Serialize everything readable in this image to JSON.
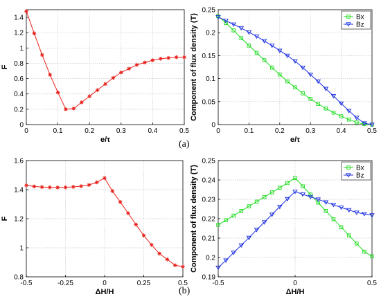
{
  "figure": {
    "panel_labels": [
      "(a)",
      "(b)"
    ],
    "colors": {
      "F": "#e8201a",
      "Bx": "#1bdc1b",
      "Bz": "#1a2ee0"
    }
  },
  "chart_data": [
    {
      "id": "top-left",
      "type": "line",
      "xlabel": "e/τ",
      "ylabel": "F",
      "xlim": [
        0,
        0.5
      ],
      "ylim": [
        0,
        1.5
      ],
      "xticks": [
        0,
        0.1,
        0.2,
        0.3,
        0.4,
        0.5
      ],
      "xticklabels": [
        "0",
        "0.1",
        "0.2",
        "0.3",
        "0.4",
        "0.5"
      ],
      "yticks": [
        0,
        0.2,
        0.4,
        0.6,
        0.8,
        1.0,
        1.2,
        1.4
      ],
      "yticklabels": [
        "0",
        "0.2",
        "0.4",
        "0.6",
        "0.8",
        "1",
        "1.2",
        "1.4"
      ],
      "grid": true,
      "series": [
        {
          "color": "#e8201a",
          "marker": "star",
          "x": [
            0,
            0.025,
            0.05,
            0.075,
            0.1,
            0.125,
            0.15,
            0.175,
            0.2,
            0.225,
            0.25,
            0.275,
            0.3,
            0.325,
            0.35,
            0.375,
            0.4,
            0.425,
            0.45,
            0.475,
            0.5
          ],
          "y": [
            1.48,
            1.19,
            0.91,
            0.65,
            0.42,
            0.2,
            0.21,
            0.29,
            0.37,
            0.45,
            0.53,
            0.61,
            0.68,
            0.73,
            0.78,
            0.81,
            0.84,
            0.86,
            0.87,
            0.88,
            0.88
          ]
        }
      ]
    },
    {
      "id": "top-right",
      "type": "line",
      "xlabel": "e/τ",
      "ylabel": "Component of flux density (T)",
      "xlim": [
        0,
        0.5
      ],
      "ylim": [
        0,
        0.25
      ],
      "xticks": [
        0,
        0.1,
        0.2,
        0.3,
        0.4,
        0.5
      ],
      "xticklabels": [
        "0",
        "0.1",
        "0.2",
        "0.3",
        "0.4",
        "0.5"
      ],
      "yticks": [
        0,
        0.05,
        0.1,
        0.15,
        0.2,
        0.25
      ],
      "yticklabels": [
        "0",
        "0.05",
        "0.1",
        "0.15",
        "0.2",
        "0.25"
      ],
      "grid": true,
      "legend": "top-right",
      "series": [
        {
          "name": "Bx",
          "color": "#1bdc1b",
          "marker": "square",
          "x": [
            0,
            0.025,
            0.05,
            0.075,
            0.1,
            0.125,
            0.15,
            0.175,
            0.2,
            0.225,
            0.25,
            0.275,
            0.3,
            0.325,
            0.35,
            0.375,
            0.4,
            0.425,
            0.45,
            0.475,
            0.5
          ],
          "y": [
            0.236,
            0.221,
            0.205,
            0.188,
            0.172,
            0.156,
            0.14,
            0.124,
            0.109,
            0.094,
            0.081,
            0.068,
            0.056,
            0.045,
            0.035,
            0.026,
            0.018,
            0.011,
            0.005,
            0.001,
            0.0
          ]
        },
        {
          "name": "Bz",
          "color": "#1a2ee0",
          "marker": "triangle-down",
          "x": [
            0,
            0.025,
            0.05,
            0.075,
            0.1,
            0.125,
            0.15,
            0.175,
            0.2,
            0.225,
            0.25,
            0.275,
            0.3,
            0.325,
            0.35,
            0.375,
            0.4,
            0.425,
            0.45,
            0.475,
            0.5
          ],
          "y": [
            0.234,
            0.226,
            0.218,
            0.21,
            0.201,
            0.192,
            0.182,
            0.172,
            0.161,
            0.15,
            0.138,
            0.124,
            0.109,
            0.094,
            0.078,
            0.062,
            0.046,
            0.03,
            0.015,
            0.003,
            0.0
          ]
        }
      ]
    },
    {
      "id": "bottom-left",
      "type": "line",
      "xlabel": "ΔH/H",
      "ylabel": "F",
      "xlim": [
        -0.5,
        0.5
      ],
      "ylim": [
        0.8,
        1.6
      ],
      "xticks": [
        -0.5,
        -0.25,
        0,
        0.25,
        0.5
      ],
      "xticklabels": [
        "-0.5",
        "-0.25",
        "0",
        "0.25",
        "0.5"
      ],
      "yticks": [
        0.8,
        1.0,
        1.2,
        1.4,
        1.6
      ],
      "yticklabels": [
        "0.8",
        "1",
        "1.2",
        "1.4",
        "1.6"
      ],
      "grid": true,
      "series": [
        {
          "color": "#e8201a",
          "marker": "star",
          "x": [
            -0.5,
            -0.45,
            -0.4,
            -0.35,
            -0.3,
            -0.25,
            -0.2,
            -0.15,
            -0.1,
            -0.05,
            0,
            0.05,
            0.1,
            0.15,
            0.2,
            0.25,
            0.3,
            0.35,
            0.4,
            0.45,
            0.5
          ],
          "y": [
            1.43,
            1.422,
            1.418,
            1.416,
            1.415,
            1.416,
            1.419,
            1.424,
            1.432,
            1.45,
            1.48,
            1.39,
            1.315,
            1.238,
            1.16,
            1.085,
            1.02,
            0.96,
            0.92,
            0.88,
            0.87
          ]
        }
      ]
    },
    {
      "id": "bottom-right",
      "type": "line",
      "xlabel": "ΔH/H",
      "ylabel": "Component of flux density (T)",
      "xlim": [
        -0.5,
        0.5
      ],
      "ylim": [
        0.19,
        0.25
      ],
      "xticks": [
        -0.5,
        0,
        0.5
      ],
      "xticklabels": [
        "-0.5",
        "0",
        "0.5"
      ],
      "yticks": [
        0.19,
        0.2,
        0.21,
        0.22,
        0.23,
        0.24,
        0.25
      ],
      "yticklabels": [
        "0.19",
        "0.2",
        "0.21",
        "0.22",
        "0.23",
        "0.24",
        "0.25"
      ],
      "grid": true,
      "legend": "top-right",
      "series": [
        {
          "name": "Bx",
          "color": "#1bdc1b",
          "marker": "square",
          "x": [
            -0.5,
            -0.45,
            -0.4,
            -0.35,
            -0.3,
            -0.25,
            -0.2,
            -0.15,
            -0.1,
            -0.05,
            0,
            0.05,
            0.1,
            0.15,
            0.2,
            0.25,
            0.3,
            0.35,
            0.4,
            0.45,
            0.5
          ],
          "y": [
            0.2168,
            0.2192,
            0.2216,
            0.224,
            0.2264,
            0.2288,
            0.2312,
            0.2336,
            0.236,
            0.2384,
            0.241,
            0.2367,
            0.2325,
            0.2283,
            0.224,
            0.2198,
            0.2156,
            0.2114,
            0.2072,
            0.203,
            0.2006
          ]
        },
        {
          "name": "Bz",
          "color": "#1a2ee0",
          "marker": "triangle-down",
          "x": [
            -0.5,
            -0.45,
            -0.4,
            -0.35,
            -0.3,
            -0.25,
            -0.2,
            -0.15,
            -0.1,
            -0.05,
            0,
            0.05,
            0.1,
            0.15,
            0.2,
            0.25,
            0.3,
            0.35,
            0.4,
            0.45,
            0.5
          ],
          "y": [
            0.1948,
            0.1985,
            0.2025,
            0.2063,
            0.2102,
            0.2143,
            0.2182,
            0.2222,
            0.2262,
            0.2302,
            0.234,
            0.2326,
            0.2313,
            0.23,
            0.2285,
            0.2272,
            0.2258,
            0.2245,
            0.2232,
            0.2225,
            0.2218
          ]
        }
      ]
    }
  ]
}
